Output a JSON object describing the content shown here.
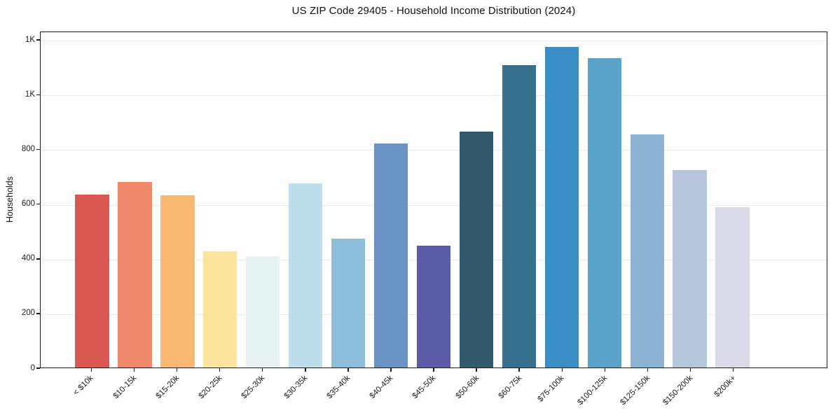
{
  "chart_data": {
    "type": "bar",
    "title": "US ZIP Code 29405 - Household Income Distribution (2024)",
    "xlabel": "",
    "ylabel": "Households",
    "categories": [
      "< $10k",
      "$10-15k",
      "$15-20k",
      "$20-25k",
      "$25-30k",
      "$30-35k",
      "$35-40k",
      "$40-45k",
      "$45-50k",
      "$50-60k",
      "$60-75k",
      "$75-100k",
      "$100-125k",
      "$125-150k",
      "$150-200k",
      "$200k+"
    ],
    "values": [
      633,
      679,
      629,
      424,
      406,
      674,
      470,
      819,
      445,
      863,
      1107,
      1173,
      1132,
      853,
      723,
      587
    ],
    "bar_colors": [
      "#d95852",
      "#f0896b",
      "#f9b872",
      "#fce49c",
      "#e6f2f4",
      "#bddeea",
      "#8ebcdb",
      "#6b92c4",
      "#5c5baa",
      "#33596c",
      "#38718f",
      "#3a8ec5",
      "#5aa4ca",
      "#8db3d4",
      "#b6c7de",
      "#d8dae7"
    ],
    "ylim": [
      0,
      1231
    ],
    "yticks": [
      {
        "value": 0,
        "label": "0"
      },
      {
        "value": 200,
        "label": "200"
      },
      {
        "value": 400,
        "label": "400"
      },
      {
        "value": 600,
        "label": "600"
      },
      {
        "value": 800,
        "label": "800"
      },
      {
        "value": 1000,
        "label": "1K"
      },
      {
        "value": 1200,
        "label": "1K"
      }
    ],
    "grid": "horizontal",
    "grid_color": "#e9e9ef",
    "spine_color": "#1c1c1c",
    "background_color": "#ffffff",
    "legend": "none"
  }
}
